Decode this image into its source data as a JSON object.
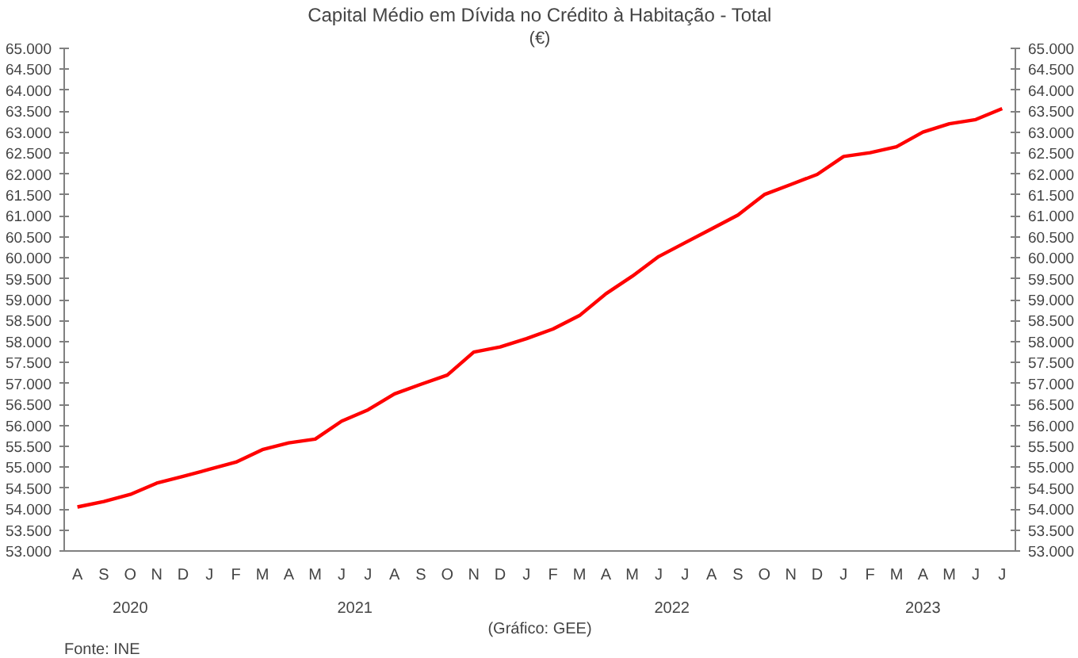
{
  "chart_data": {
    "type": "line",
    "title": "Capital Médio em Dívida no Crédito à Habitação - Total",
    "subtitle": "(€)",
    "categories": [
      "A",
      "S",
      "O",
      "N",
      "D",
      "J",
      "F",
      "M",
      "A",
      "M",
      "J",
      "J",
      "A",
      "S",
      "O",
      "N",
      "D",
      "J",
      "F",
      "M",
      "A",
      "M",
      "J",
      "J",
      "A",
      "S",
      "O",
      "N",
      "D",
      "J",
      "F",
      "M",
      "A",
      "M",
      "J",
      "J"
    ],
    "series": [
      {
        "color": "#ff0000",
        "values": [
          54050,
          54180,
          54350,
          54620,
          54780,
          54950,
          55120,
          55420,
          55580,
          55670,
          56100,
          56370,
          56750,
          56980,
          57200,
          57750,
          57870,
          58070,
          58300,
          58620,
          59140,
          59560,
          60030,
          60360,
          60690,
          61020,
          61510,
          61750,
          61990,
          62420,
          62510,
          62650,
          63000,
          63200,
          63300,
          63560
        ]
      }
    ],
    "ylim": [
      53000,
      65000
    ],
    "yticks": [
      {
        "value": 53000,
        "label": "53.000"
      },
      {
        "value": 53500,
        "label": "53.500"
      },
      {
        "value": 54000,
        "label": "54.000"
      },
      {
        "value": 54500,
        "label": "54.500"
      },
      {
        "value": 55000,
        "label": "55.000"
      },
      {
        "value": 55500,
        "label": "55.500"
      },
      {
        "value": 56000,
        "label": "56.000"
      },
      {
        "value": 56500,
        "label": "56.500"
      },
      {
        "value": 57000,
        "label": "57.000"
      },
      {
        "value": 57500,
        "label": "57.500"
      },
      {
        "value": 58000,
        "label": "58.000"
      },
      {
        "value": 58500,
        "label": "58.500"
      },
      {
        "value": 59000,
        "label": "59.000"
      },
      {
        "value": 59500,
        "label": "59.500"
      },
      {
        "value": 60000,
        "label": "60.000"
      },
      {
        "value": 60500,
        "label": "60.500"
      },
      {
        "value": 61000,
        "label": "61.000"
      },
      {
        "value": 61500,
        "label": "61.500"
      },
      {
        "value": 62000,
        "label": "62.000"
      },
      {
        "value": 62500,
        "label": "62.500"
      },
      {
        "value": 63000,
        "label": "63.000"
      },
      {
        "value": 63500,
        "label": "63.500"
      },
      {
        "value": 64000,
        "label": "64.000"
      },
      {
        "value": 64500,
        "label": "64.500"
      },
      {
        "value": 65000,
        "label": "65.000"
      }
    ],
    "y2lim": [
      53000,
      65000
    ],
    "y2ticks": [
      {
        "value": 53000,
        "label": "53.000"
      },
      {
        "value": 53500,
        "label": "53.500"
      },
      {
        "value": 54000,
        "label": "54.000"
      },
      {
        "value": 54500,
        "label": "54.500"
      },
      {
        "value": 55000,
        "label": "55.000"
      },
      {
        "value": 55500,
        "label": "55.500"
      },
      {
        "value": 56000,
        "label": "56.000"
      },
      {
        "value": 56500,
        "label": "56.500"
      },
      {
        "value": 57000,
        "label": "57.000"
      },
      {
        "value": 57500,
        "label": "57.500"
      },
      {
        "value": 58000,
        "label": "58.000"
      },
      {
        "value": 58500,
        "label": "58.500"
      },
      {
        "value": 59000,
        "label": "59.000"
      },
      {
        "value": 59500,
        "label": "59.500"
      },
      {
        "value": 60000,
        "label": "60.000"
      },
      {
        "value": 60500,
        "label": "60.500"
      },
      {
        "value": 61000,
        "label": "61.000"
      },
      {
        "value": 61500,
        "label": "61.500"
      },
      {
        "value": 62000,
        "label": "62.000"
      },
      {
        "value": 62500,
        "label": "62.500"
      },
      {
        "value": 63000,
        "label": "63.000"
      },
      {
        "value": 63500,
        "label": "63.500"
      },
      {
        "value": 64000,
        "label": "64.000"
      },
      {
        "value": 64500,
        "label": "64.500"
      },
      {
        "value": 65000,
        "label": "65.000"
      }
    ],
    "annotations": [
      "2020",
      "2021",
      "2022",
      "2023",
      "Fonte: INE",
      "(Gráfico: GEE)"
    ],
    "grid": false,
    "line_style": "solid"
  }
}
